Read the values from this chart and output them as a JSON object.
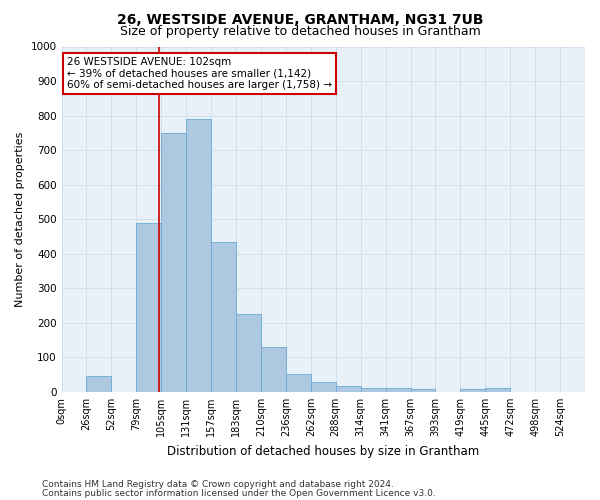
{
  "title": "26, WESTSIDE AVENUE, GRANTHAM, NG31 7UB",
  "subtitle": "Size of property relative to detached houses in Grantham",
  "xlabel": "Distribution of detached houses by size in Grantham",
  "ylabel": "Number of detached properties",
  "categories": [
    "0sqm",
    "26sqm",
    "52sqm",
    "79sqm",
    "105sqm",
    "131sqm",
    "157sqm",
    "183sqm",
    "210sqm",
    "236sqm",
    "262sqm",
    "288sqm",
    "314sqm",
    "341sqm",
    "367sqm",
    "393sqm",
    "419sqm",
    "445sqm",
    "472sqm",
    "498sqm",
    "524sqm"
  ],
  "values": [
    0,
    45,
    0,
    490,
    750,
    790,
    435,
    225,
    130,
    52,
    30,
    18,
    12,
    10,
    8,
    0,
    8,
    12,
    0,
    0,
    0
  ],
  "bar_color": "#adc8e0",
  "bar_edgecolor": "#6aaad4",
  "bar_linewidth": 0.6,
  "property_line_x": 102,
  "bin_width": 26,
  "ylim": [
    0,
    1000
  ],
  "yticks": [
    0,
    100,
    200,
    300,
    400,
    500,
    600,
    700,
    800,
    900,
    1000
  ],
  "grid_color": "#c8d8ea",
  "background_color": "#e8f0f8",
  "annotation_text": "26 WESTSIDE AVENUE: 102sqm\n← 39% of detached houses are smaller (1,142)\n60% of semi-detached houses are larger (1,758) →",
  "annotation_box_color": "#ffffff",
  "annotation_box_edgecolor": "#cc0000",
  "footer_line1": "Contains HM Land Registry data © Crown copyright and database right 2024.",
  "footer_line2": "Contains public sector information licensed under the Open Government Licence v3.0.",
  "title_fontsize": 10,
  "subtitle_fontsize": 9,
  "xlabel_fontsize": 8.5,
  "ylabel_fontsize": 8,
  "tick_fontsize": 7,
  "annotation_fontsize": 7.5,
  "footer_fontsize": 6.5
}
